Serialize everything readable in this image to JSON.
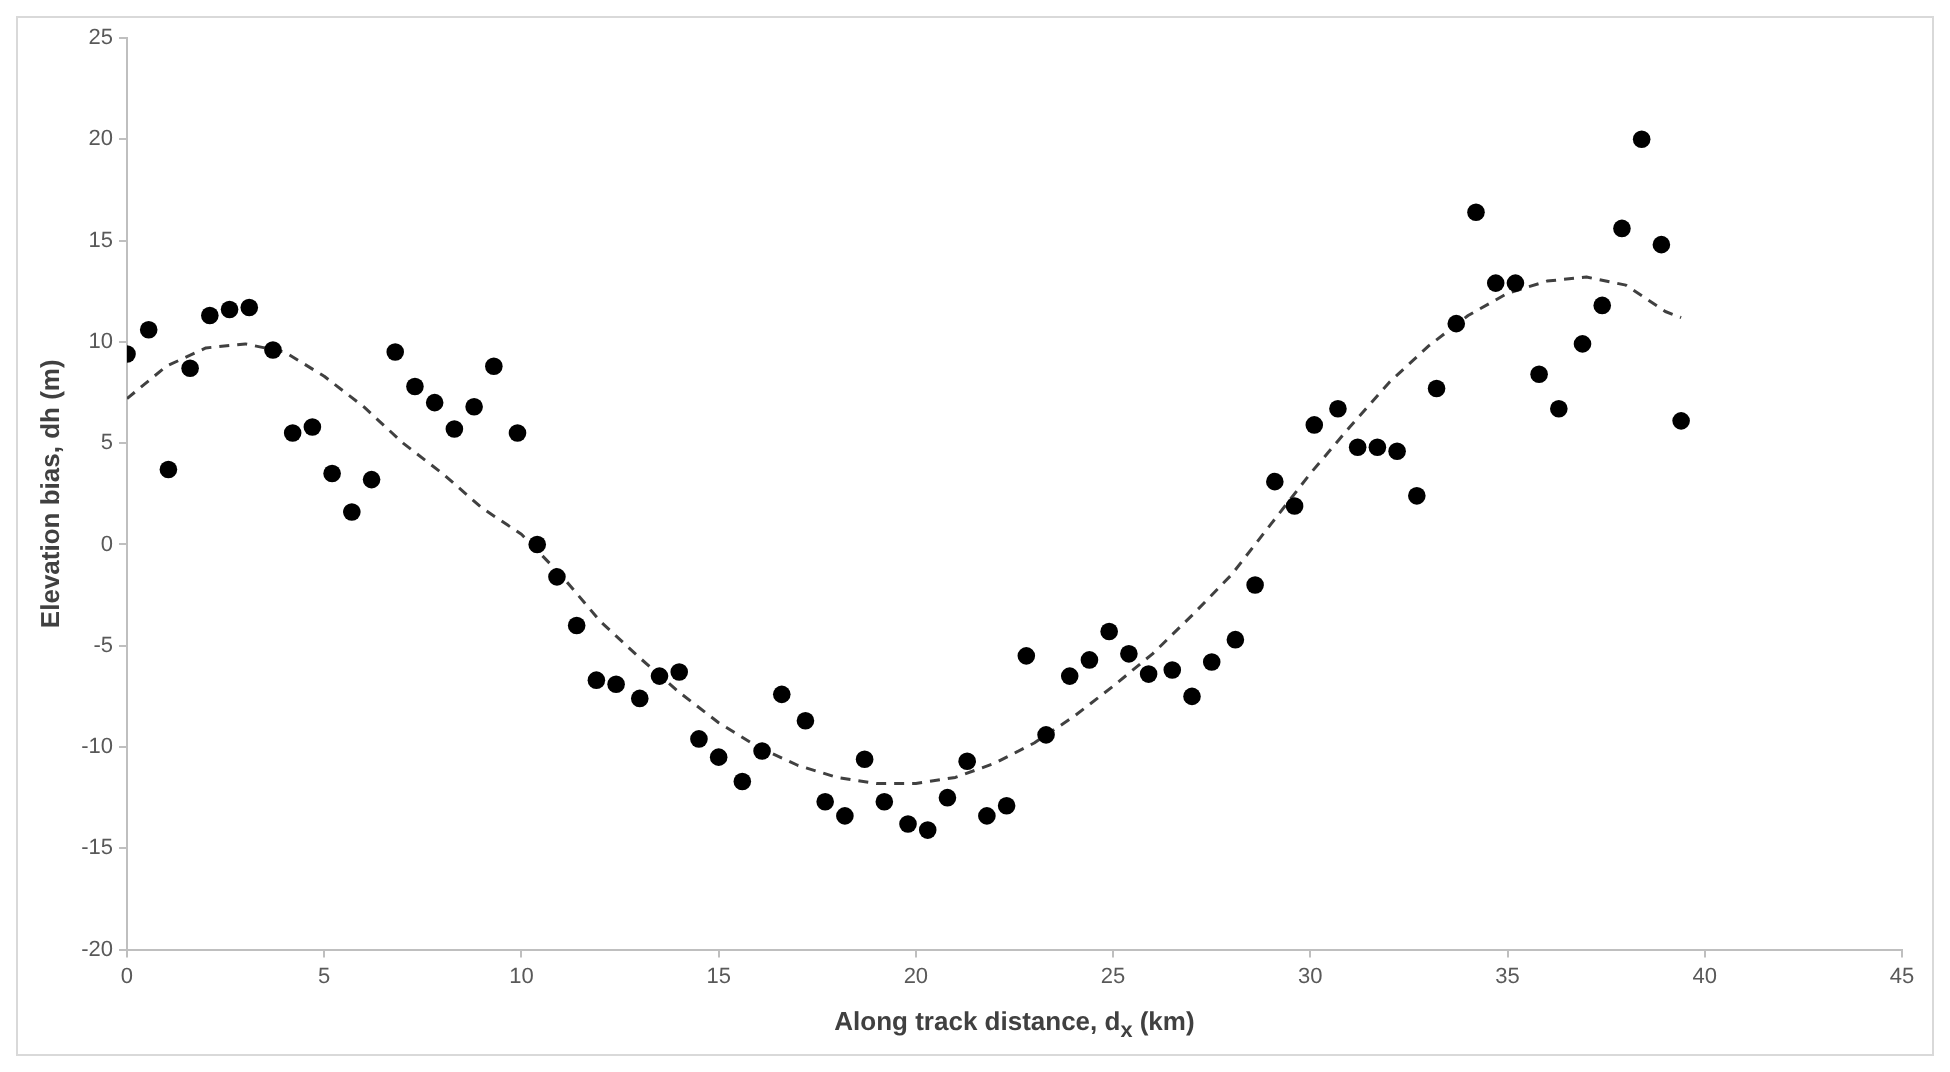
{
  "chart_data": {
    "type": "scatter",
    "xlabel": "Along track distance, d$_{x}$ (km)",
    "ylabel": "Elevation bias, dh (m)",
    "xlim": [
      0,
      45
    ],
    "xticks": [
      0,
      5,
      10,
      15,
      20,
      25,
      30,
      35,
      40,
      45
    ],
    "ylim": [
      -20,
      25
    ],
    "yticks": [
      -20,
      -15,
      -10,
      -5,
      0,
      5,
      10,
      15,
      20,
      25
    ],
    "grid": false,
    "legend": false,
    "series": [
      {
        "type": "scatter",
        "color": "#000000",
        "marker": "circle",
        "x": [
          0,
          0.55,
          1.05,
          1.6,
          2.1,
          2.6,
          3.1,
          3.7,
          4.2,
          4.7,
          5.2,
          5.7,
          6.2,
          6.8,
          7.3,
          7.8,
          8.3,
          8.8,
          9.3,
          9.9,
          10.4,
          10.9,
          11.4,
          11.9,
          12.4,
          13.0,
          13.5,
          14.0,
          14.5,
          15.0,
          15.6,
          16.1,
          16.6,
          17.2,
          17.7,
          18.2,
          18.7,
          19.2,
          19.8,
          20.3,
          20.8,
          21.3,
          21.8,
          22.3,
          22.8,
          23.3,
          23.9,
          24.4,
          24.9,
          25.4,
          25.9,
          26.5,
          27.0,
          27.5,
          28.1,
          28.6,
          29.1,
          29.6,
          30.1,
          30.7,
          31.2,
          31.7,
          32.2,
          32.7,
          33.2,
          33.7,
          34.2,
          34.7,
          35.2,
          35.8,
          36.3,
          36.9,
          37.4,
          37.9,
          38.4,
          38.9,
          39.4
        ],
        "values": [
          9.4,
          10.6,
          3.7,
          8.7,
          11.3,
          11.6,
          11.7,
          9.6,
          5.5,
          5.8,
          3.5,
          1.6,
          3.2,
          9.5,
          7.8,
          7.0,
          5.7,
          6.8,
          8.8,
          5.5,
          0.0,
          -1.6,
          -4.0,
          -6.7,
          -6.9,
          -7.6,
          -6.5,
          -6.3,
          -9.6,
          -10.5,
          -11.7,
          -10.2,
          -7.4,
          -8.7,
          -12.7,
          -13.4,
          -10.6,
          -12.7,
          -13.8,
          -14.1,
          -12.5,
          -10.7,
          -13.4,
          -12.9,
          -5.5,
          -9.4,
          -6.5,
          -5.7,
          -4.3,
          -5.4,
          -6.4,
          -6.2,
          -7.5,
          -5.8,
          -4.7,
          -2.0,
          3.1,
          1.9,
          5.9,
          6.7,
          4.8,
          4.8,
          4.6,
          2.4,
          7.7,
          10.9,
          16.4,
          12.9,
          12.9,
          8.4,
          6.7,
          9.9,
          11.8,
          15.6,
          20.0,
          14.8,
          6.1
        ]
      },
      {
        "type": "line",
        "color": "#404040",
        "marker": "none",
        "line_style": "dashed",
        "x": [
          0,
          1,
          2,
          3,
          4,
          5,
          6,
          7,
          8,
          9,
          10,
          11,
          12,
          13,
          14,
          15,
          16,
          17,
          18,
          19,
          20,
          21,
          22,
          23,
          24,
          25,
          26,
          27,
          28,
          29,
          30,
          31,
          32,
          33,
          34,
          35,
          36,
          37,
          38,
          39,
          39.4
        ],
        "values": [
          7.2,
          8.8,
          9.7,
          9.9,
          9.5,
          8.3,
          6.8,
          5.0,
          3.5,
          1.8,
          0.5,
          -1.5,
          -3.8,
          -5.6,
          -7.3,
          -8.8,
          -10.0,
          -10.9,
          -11.5,
          -11.8,
          -11.8,
          -11.5,
          -10.8,
          -9.8,
          -8.5,
          -7.0,
          -5.4,
          -3.5,
          -1.5,
          1.0,
          3.5,
          5.8,
          8.0,
          9.8,
          11.3,
          12.4,
          13.0,
          13.2,
          12.8,
          11.5,
          11.2
        ]
      }
    ]
  }
}
